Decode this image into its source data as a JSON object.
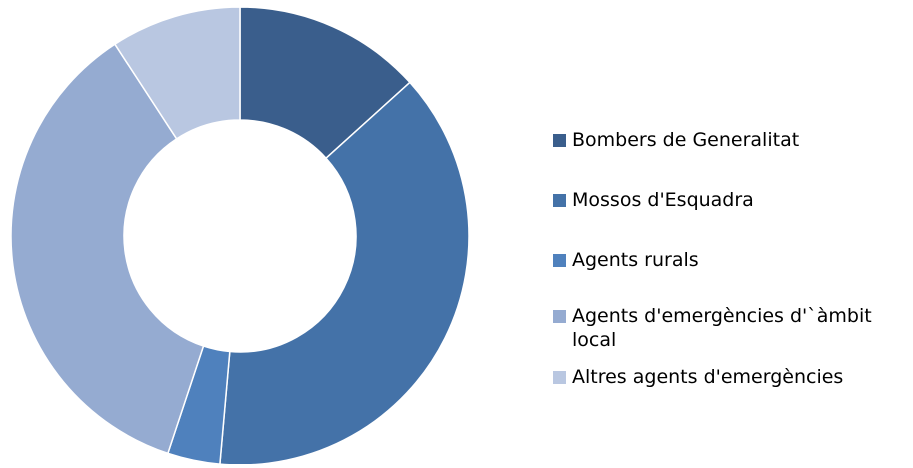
{
  "chart_data": {
    "type": "pie",
    "variant": "doughnut",
    "title": "",
    "categories": [
      "Bombers de Generalitat",
      "Mossos d'Esquadra",
      "Agents rurals",
      "Agents d'emergències d'`àmbit local",
      "Altres agents d'emergències"
    ],
    "values": [
      13.3,
      38.1,
      3.7,
      35.7,
      9.2
    ],
    "colors": [
      "#3a5e8c",
      "#4472a8",
      "#4f81bd",
      "#95abd1",
      "#b9c7e1"
    ],
    "legend_position": "right"
  },
  "legend": {
    "items": [
      {
        "label": "Bombers de Generalitat",
        "color": "#3a5e8c"
      },
      {
        "label": "Mossos d'Esquadra",
        "color": "#4472a8"
      },
      {
        "label": "Agents rurals",
        "color": "#4f81bd"
      },
      {
        "label": "Agents d'emergències d'`àmbit local",
        "color": "#95abd1"
      },
      {
        "label": "Altres agents d'emergències",
        "color": "#b9c7e1"
      }
    ]
  }
}
